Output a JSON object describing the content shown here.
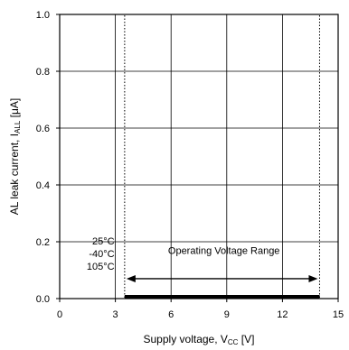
{
  "chart_data": {
    "type": "line",
    "xlabel": "Supply voltage, V",
    "xlabel_sub": "CC",
    "xlabel_unit": " [V]",
    "ylabel": "AL leak current, I",
    "ylabel_sub": "ALL",
    "ylabel_unit": " [μA]",
    "xlim": [
      0,
      15
    ],
    "ylim": [
      0,
      1.0
    ],
    "x_ticks": [
      0,
      3,
      6,
      9,
      12,
      15
    ],
    "x_tick_labels": [
      "0",
      "3",
      "6",
      "9",
      "12",
      "15"
    ],
    "y_ticks": [
      0,
      0.2,
      0.4,
      0.6,
      0.8,
      1.0
    ],
    "y_tick_labels": [
      "0.0",
      "0.2",
      "0.4",
      "0.6",
      "0.8",
      "1.0"
    ],
    "grid": true,
    "series_labels": [
      "25°C",
      "-40°C",
      "105°C"
    ],
    "series": [
      {
        "x": [
          3.5,
          14.0
        ],
        "y": [
          0.0,
          0.0
        ]
      }
    ],
    "operating_range": {
      "x_min": 3.5,
      "x_max": 14.0,
      "label": "Operating Voltage Range",
      "arrow_y": 0.07
    },
    "colors": {
      "axis": "#000000",
      "series": "#000000",
      "grid": "#000000"
    }
  }
}
